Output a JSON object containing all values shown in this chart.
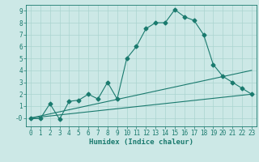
{
  "title": "",
  "xlabel": "Humidex (Indice chaleur)",
  "ylabel": "",
  "bg_color": "#cce8e6",
  "grid_color": "#aad4d0",
  "line_color": "#1a7a6e",
  "xlim": [
    -0.5,
    23.5
  ],
  "ylim": [
    -0.7,
    9.5
  ],
  "xticks": [
    0,
    1,
    2,
    3,
    4,
    5,
    6,
    7,
    8,
    9,
    10,
    11,
    12,
    13,
    14,
    15,
    16,
    17,
    18,
    19,
    20,
    21,
    22,
    23
  ],
  "yticks": [
    0,
    1,
    2,
    3,
    4,
    5,
    6,
    7,
    8,
    9
  ],
  "ytick_labels": [
    "-0",
    "1",
    "2",
    "3",
    "4",
    "5",
    "6",
    "7",
    "8",
    "9"
  ],
  "main_x": [
    0,
    1,
    2,
    3,
    4,
    5,
    6,
    7,
    8,
    9,
    10,
    11,
    12,
    13,
    14,
    15,
    16,
    17,
    18,
    19,
    20,
    21,
    22,
    23
  ],
  "main_y": [
    -0.05,
    -0.05,
    1.2,
    -0.1,
    1.4,
    1.5,
    2.0,
    1.6,
    3.0,
    1.6,
    5.0,
    6.0,
    7.5,
    8.0,
    8.0,
    9.1,
    8.5,
    8.2,
    7.0,
    4.5,
    3.5,
    3.0,
    2.5,
    2.0
  ],
  "line2_x": [
    0,
    23
  ],
  "line2_y": [
    0.0,
    4.0
  ],
  "line3_x": [
    0,
    23
  ],
  "line3_y": [
    0.0,
    2.0
  ],
  "figsize": [
    3.2,
    2.0
  ],
  "dpi": 100,
  "tick_fontsize": 5.5,
  "xlabel_fontsize": 6.5,
  "marker_size": 2.5,
  "line_width": 0.8
}
